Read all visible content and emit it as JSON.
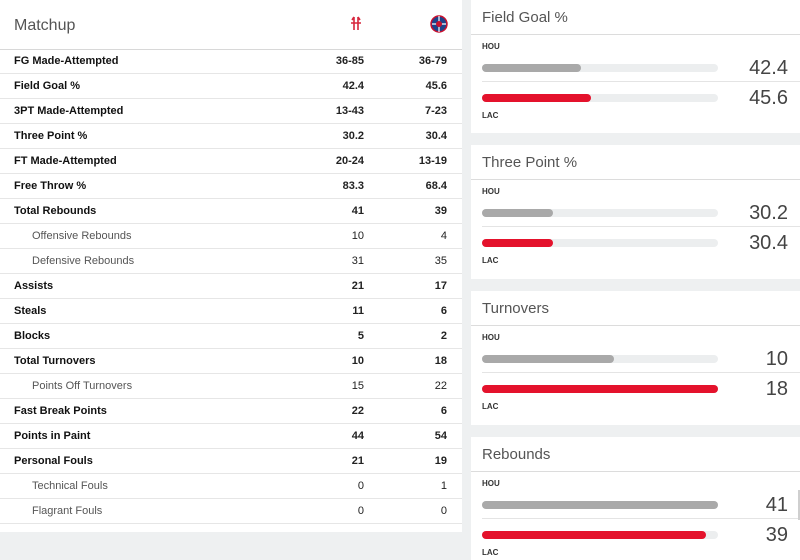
{
  "matchup": {
    "title": "Matchup",
    "teams": {
      "home_icon": "rockets-logo-icon",
      "away_icon": "clippers-logo-icon"
    },
    "rows": [
      {
        "label": "FG Made-Attempted",
        "hou": "36-85",
        "lac": "36-79",
        "type": "bold"
      },
      {
        "label": "Field Goal %",
        "hou": "42.4",
        "lac": "45.6",
        "type": "normal"
      },
      {
        "label": "3PT Made-Attempted",
        "hou": "13-43",
        "lac": "7-23",
        "type": "normal"
      },
      {
        "label": "Three Point %",
        "hou": "30.2",
        "lac": "30.4",
        "type": "normal"
      },
      {
        "label": "FT Made-Attempted",
        "hou": "20-24",
        "lac": "13-19",
        "type": "normal"
      },
      {
        "label": "Free Throw %",
        "hou": "83.3",
        "lac": "68.4",
        "type": "normal"
      },
      {
        "label": "Total Rebounds",
        "hou": "41",
        "lac": "39",
        "type": "bold"
      },
      {
        "label": "Offensive Rebounds",
        "hou": "10",
        "lac": "4",
        "type": "sub"
      },
      {
        "label": "Defensive Rebounds",
        "hou": "31",
        "lac": "35",
        "type": "sub"
      },
      {
        "label": "Assists",
        "hou": "21",
        "lac": "17",
        "type": "bold"
      },
      {
        "label": "Steals",
        "hou": "11",
        "lac": "6",
        "type": "bold"
      },
      {
        "label": "Blocks",
        "hou": "5",
        "lac": "2",
        "type": "bold"
      },
      {
        "label": "Total Turnovers",
        "hou": "10",
        "lac": "18",
        "type": "bold"
      },
      {
        "label": "Points Off Turnovers",
        "hou": "15",
        "lac": "22",
        "type": "sub"
      },
      {
        "label": "Fast Break Points",
        "hou": "22",
        "lac": "6",
        "type": "bold"
      },
      {
        "label": "Points in Paint",
        "hou": "44",
        "lac": "54",
        "type": "bold"
      },
      {
        "label": "Personal Fouls",
        "hou": "21",
        "lac": "19",
        "type": "bold"
      },
      {
        "label": "Technical Fouls",
        "hou": "0",
        "lac": "1",
        "type": "sub"
      },
      {
        "label": "Flagrant Fouls",
        "hou": "0",
        "lac": "0",
        "type": "sub"
      }
    ]
  },
  "comparisons": [
    {
      "title": "Field Goal %",
      "hou_tag": "HOU",
      "lac_tag": "LAC",
      "hou_value": "42.4",
      "lac_value": "45.6",
      "hou_fill": 0.42,
      "lac_fill": 0.46
    },
    {
      "title": "Three Point %",
      "hou_tag": "HOU",
      "lac_tag": "LAC",
      "hou_value": "30.2",
      "lac_value": "30.4",
      "hou_fill": 0.3,
      "lac_fill": 0.3
    },
    {
      "title": "Turnovers",
      "hou_tag": "HOU",
      "lac_tag": "LAC",
      "hou_value": "10",
      "lac_value": "18",
      "hou_fill": 0.56,
      "lac_fill": 1.0
    },
    {
      "title": "Rebounds",
      "hou_tag": "HOU",
      "lac_tag": "LAC",
      "hou_value": "41",
      "lac_value": "39",
      "hou_fill": 1.0,
      "lac_fill": 0.95
    }
  ],
  "colors": {
    "hou_bar": "#a9a9a9",
    "lac_bar": "#e4122c",
    "track": "#eceeef"
  }
}
